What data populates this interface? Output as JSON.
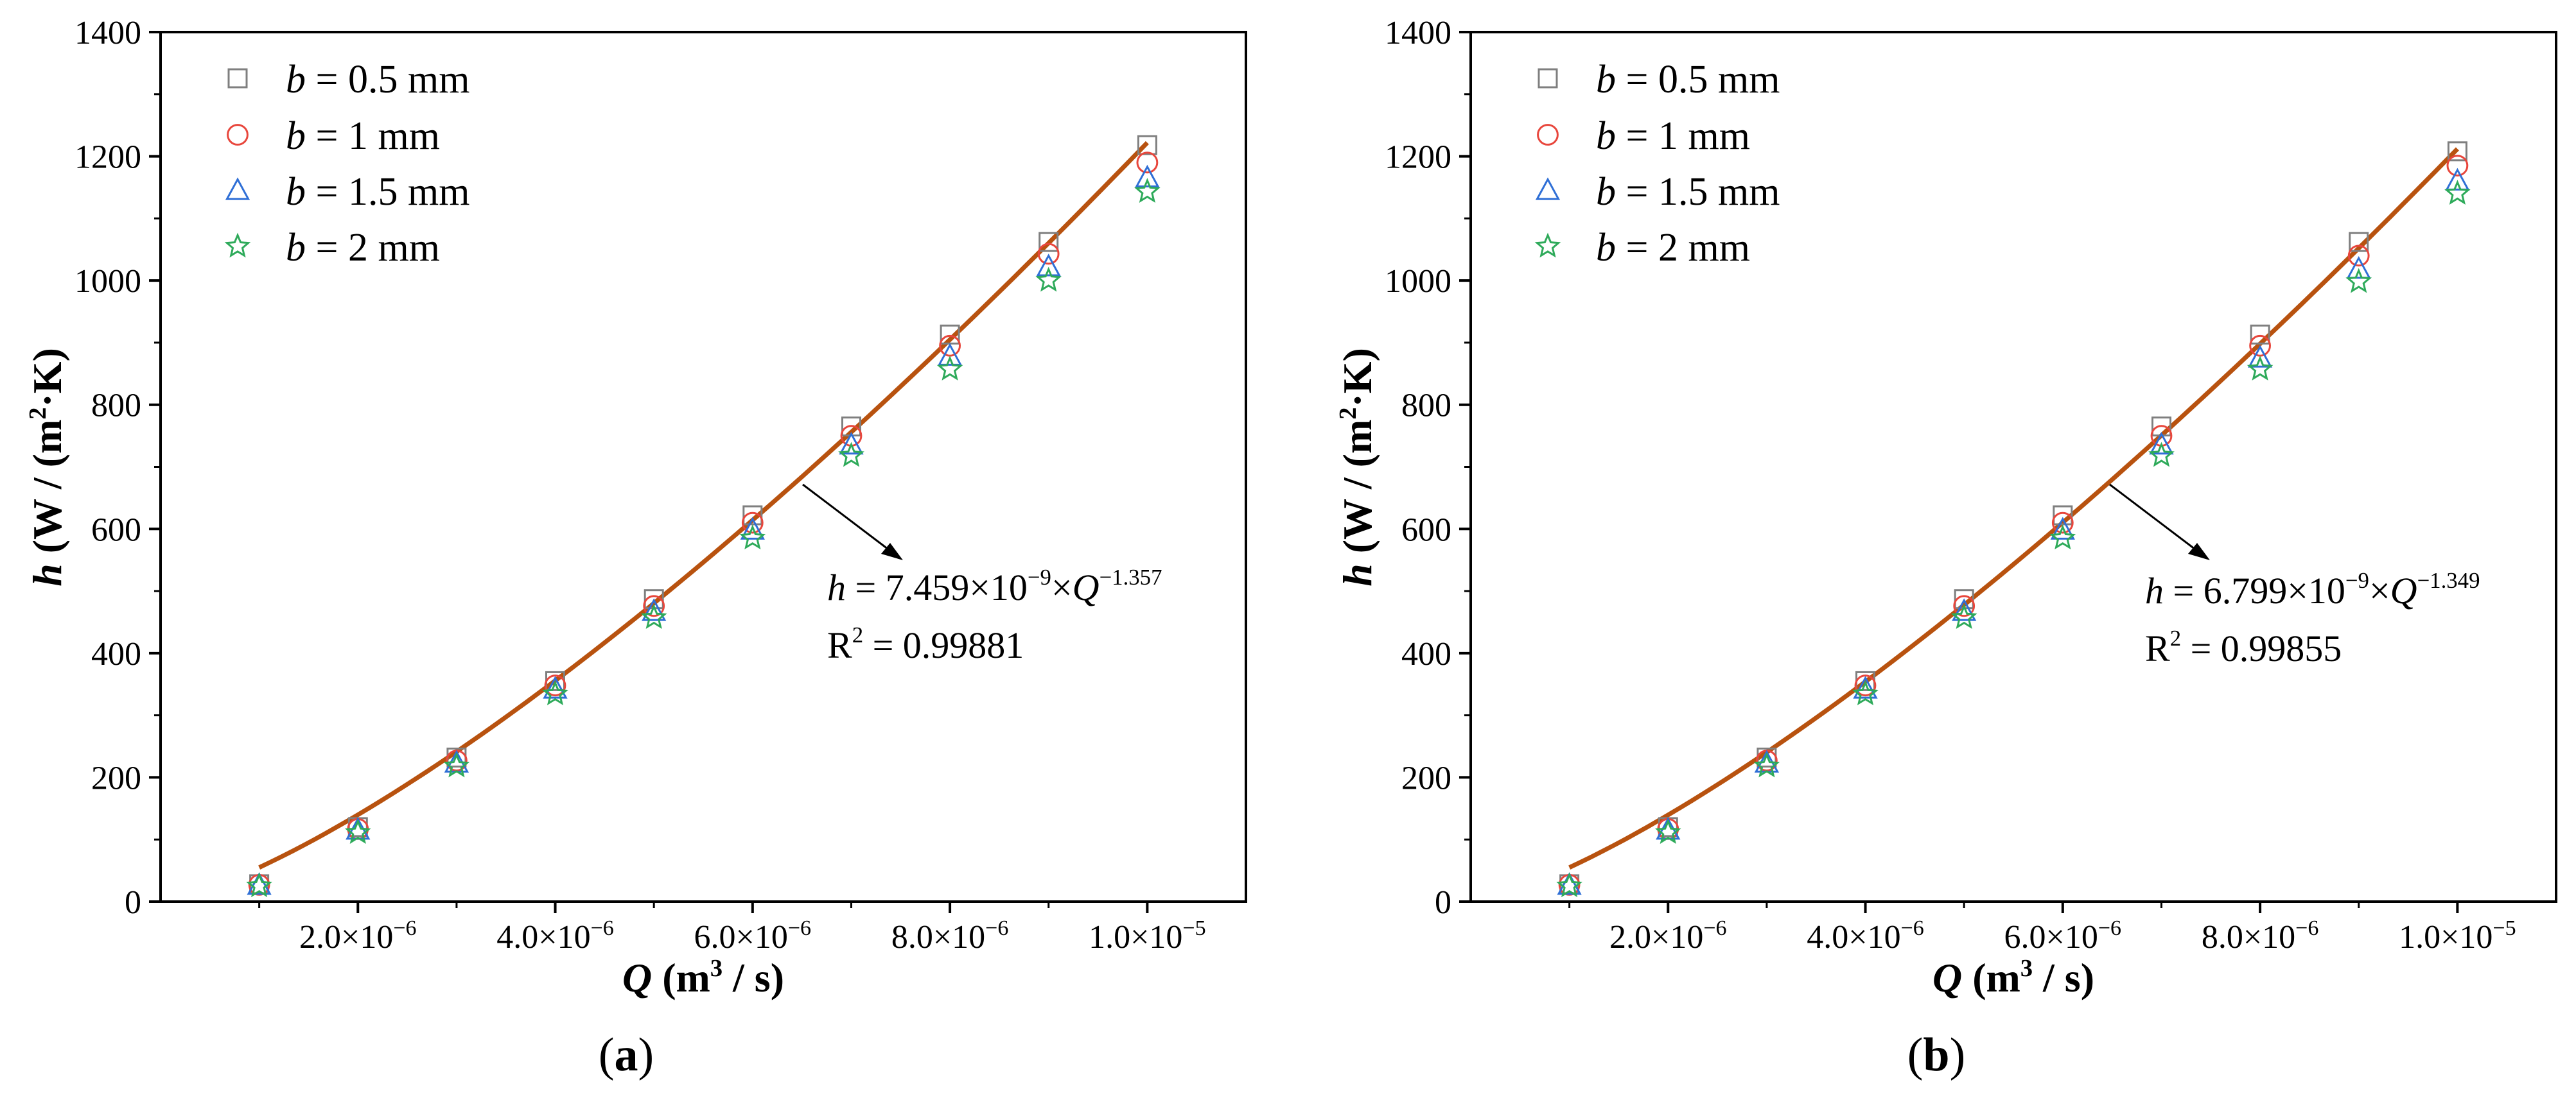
{
  "chart_data": [
    {
      "type": "scatter",
      "panel_label": "a",
      "x": [
        1e-06,
        2e-06,
        3e-06,
        4e-06,
        5e-06,
        6e-06,
        7e-06,
        8e-06,
        9e-06,
        1e-05
      ],
      "series": [
        {
          "name": "b = 0.5 mm",
          "marker": "square",
          "color": "#7f7f7f",
          "values": [
            28,
            120,
            232,
            355,
            487,
            622,
            765,
            913,
            1062,
            1218
          ]
        },
        {
          "name": "b = 1 mm",
          "marker": "circle",
          "color": "#e8463c",
          "values": [
            27,
            117,
            227,
            348,
            476,
            610,
            750,
            895,
            1043,
            1190
          ]
        },
        {
          "name": "b = 1.5 mm",
          "marker": "triangle",
          "color": "#2f6fd6",
          "values": [
            26,
            115,
            223,
            342,
            467,
            598,
            735,
            878,
            1022,
            1165
          ]
        },
        {
          "name": "b = 2 mm",
          "marker": "star",
          "color": "#2eaa5a",
          "values": [
            25,
            111,
            218,
            334,
            457,
            585,
            718,
            857,
            1000,
            1143
          ]
        }
      ],
      "fit": {
        "color": "#b8520f",
        "x_range": [
          1e-06,
          1e-05
        ],
        "y_at_1e-6": 55,
        "y_at_1e-5": 1222
      },
      "annotation": {
        "eq_lhs": "h",
        "eq_coef": " = 7.459×10",
        "eq_coef_exp": "−9",
        "eq_mid": "×",
        "eq_var": "Q",
        "eq_exp": "−1.357",
        "r2_label": "R",
        "r2_exp": "2",
        "r2_value": " = 0.99881"
      },
      "xlabel_var": "Q",
      "xlabel_unit_a": " (m",
      "xlabel_unit_exp": "3",
      "xlabel_unit_b": " / s)",
      "ylabel_var": "h",
      "ylabel_unit_a": " (W / (m",
      "ylabel_unit_exp": "2",
      "ylabel_unit_b": "·K)",
      "xlim": [
        0,
        1.1e-05
      ],
      "ylim": [
        0,
        1400
      ],
      "xticks": [
        {
          "value": 2e-06,
          "mant": "2.0×10",
          "exp": "−6"
        },
        {
          "value": 4e-06,
          "mant": "4.0×10",
          "exp": "−6"
        },
        {
          "value": 6e-06,
          "mant": "6.0×10",
          "exp": "−6"
        },
        {
          "value": 8e-06,
          "mant": "8.0×10",
          "exp": "−6"
        },
        {
          "value": 1e-05,
          "mant": "1.0×10",
          "exp": "−5"
        }
      ],
      "yticks": [
        0,
        200,
        400,
        600,
        800,
        1000,
        1200,
        1400
      ],
      "legend_var": "b",
      "legend_texts": [
        " = 0.5 mm",
        " = 1 mm",
        " = 1.5 mm",
        " = 2 mm"
      ],
      "legend_position": "top-left"
    },
    {
      "type": "scatter",
      "panel_label": "b",
      "x": [
        1e-06,
        2e-06,
        3e-06,
        4e-06,
        5e-06,
        6e-06,
        7e-06,
        8e-06,
        9e-06,
        1e-05
      ],
      "series": [
        {
          "name": "b = 0.5 mm",
          "marker": "square",
          "color": "#7f7f7f",
          "values": [
            28,
            120,
            232,
            355,
            487,
            622,
            765,
            913,
            1062,
            1208
          ]
        },
        {
          "name": "b = 1 mm",
          "marker": "circle",
          "color": "#e8463c",
          "values": [
            27,
            117,
            227,
            348,
            476,
            610,
            750,
            895,
            1040,
            1185
          ]
        },
        {
          "name": "b = 1.5 mm",
          "marker": "triangle",
          "color": "#2f6fd6",
          "values": [
            26,
            115,
            223,
            342,
            467,
            598,
            735,
            875,
            1018,
            1160
          ]
        },
        {
          "name": "b = 2 mm",
          "marker": "star",
          "color": "#2eaa5a",
          "values": [
            25,
            111,
            218,
            334,
            457,
            585,
            718,
            857,
            998,
            1140
          ]
        }
      ],
      "fit": {
        "color": "#b8520f",
        "x_range": [
          1e-06,
          1e-05
        ],
        "y_at_1e-6": 55,
        "y_at_1e-5": 1212
      },
      "annotation": {
        "eq_lhs": "h",
        "eq_coef": " = 6.799×10",
        "eq_coef_exp": "−9",
        "eq_mid": "×",
        "eq_var": "Q",
        "eq_exp": "−1.349",
        "r2_label": "R",
        "r2_exp": "2",
        "r2_value": " = 0.99855"
      },
      "xlabel_var": "Q",
      "xlabel_unit_a": " (m",
      "xlabel_unit_exp": "3",
      "xlabel_unit_b": " / s)",
      "ylabel_var": "h",
      "ylabel_unit_a": " (W / (m",
      "ylabel_unit_exp": "2",
      "ylabel_unit_b": "·K)",
      "xlim": [
        0,
        1.1e-05
      ],
      "ylim": [
        0,
        1400
      ],
      "xticks": [
        {
          "value": 2e-06,
          "mant": "2.0×10",
          "exp": "−6"
        },
        {
          "value": 4e-06,
          "mant": "4.0×10",
          "exp": "−6"
        },
        {
          "value": 6e-06,
          "mant": "6.0×10",
          "exp": "−6"
        },
        {
          "value": 8e-06,
          "mant": "8.0×10",
          "exp": "−6"
        },
        {
          "value": 1e-05,
          "mant": "1.0×10",
          "exp": "−5"
        }
      ],
      "yticks": [
        0,
        200,
        400,
        600,
        800,
        1000,
        1200,
        1400
      ],
      "legend_var": "b",
      "legend_texts": [
        " = 0.5 mm",
        " = 1 mm",
        " = 1.5 mm",
        " = 2 mm"
      ],
      "legend_position": "top-left"
    }
  ]
}
